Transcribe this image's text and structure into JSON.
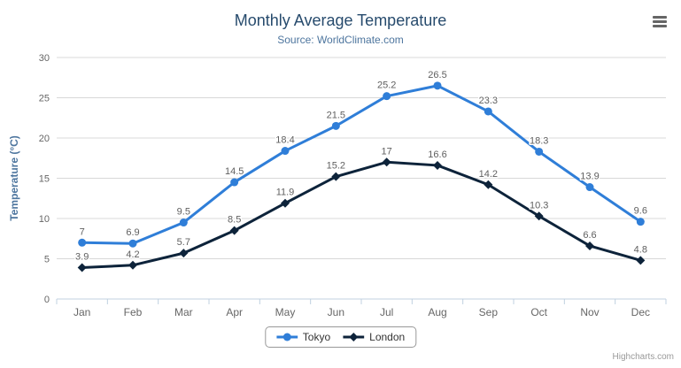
{
  "header": {
    "title": "Monthly Average Temperature",
    "subtitle": "Source: WorldClimate.com"
  },
  "menu": {
    "icon": "hamburger-icon",
    "tooltip": "Chart context menu"
  },
  "chart_data": {
    "type": "line",
    "categories": [
      "Jan",
      "Feb",
      "Mar",
      "Apr",
      "May",
      "Jun",
      "Jul",
      "Aug",
      "Sep",
      "Oct",
      "Nov",
      "Dec"
    ],
    "series": [
      {
        "name": "Tokyo",
        "color": "#2f7ed8",
        "marker": "circle",
        "values": [
          7,
          6.9,
          9.5,
          14.5,
          18.4,
          21.5,
          25.2,
          26.5,
          23.3,
          18.3,
          13.9,
          9.6
        ]
      },
      {
        "name": "London",
        "color": "#0d233a",
        "marker": "diamond",
        "values": [
          3.9,
          4.2,
          5.7,
          8.5,
          11.9,
          15.2,
          17,
          16.6,
          14.2,
          10.3,
          6.6,
          4.8
        ]
      }
    ],
    "title": "Monthly Average Temperature",
    "subtitle": "Source: WorldClimate.com",
    "xlabel": "",
    "ylabel": "Temperature (°C)",
    "ylim": [
      0,
      30
    ],
    "ytick_step": 5,
    "grid": true,
    "data_labels": true,
    "legend_position": "bottom"
  },
  "colors": {
    "title": "#274b6d",
    "subtitle": "#4d759e",
    "axis_title": "#4d759e",
    "tick_labels": "#666666",
    "data_labels": "#606060",
    "gridline": "#d8d8d8",
    "axis_line": "#c0d0e0",
    "legend_border": "#999999",
    "legend_text": "#333333",
    "credits": "#999999",
    "menu_icon": "#666666"
  },
  "credits": {
    "label": "Highcharts.com"
  }
}
